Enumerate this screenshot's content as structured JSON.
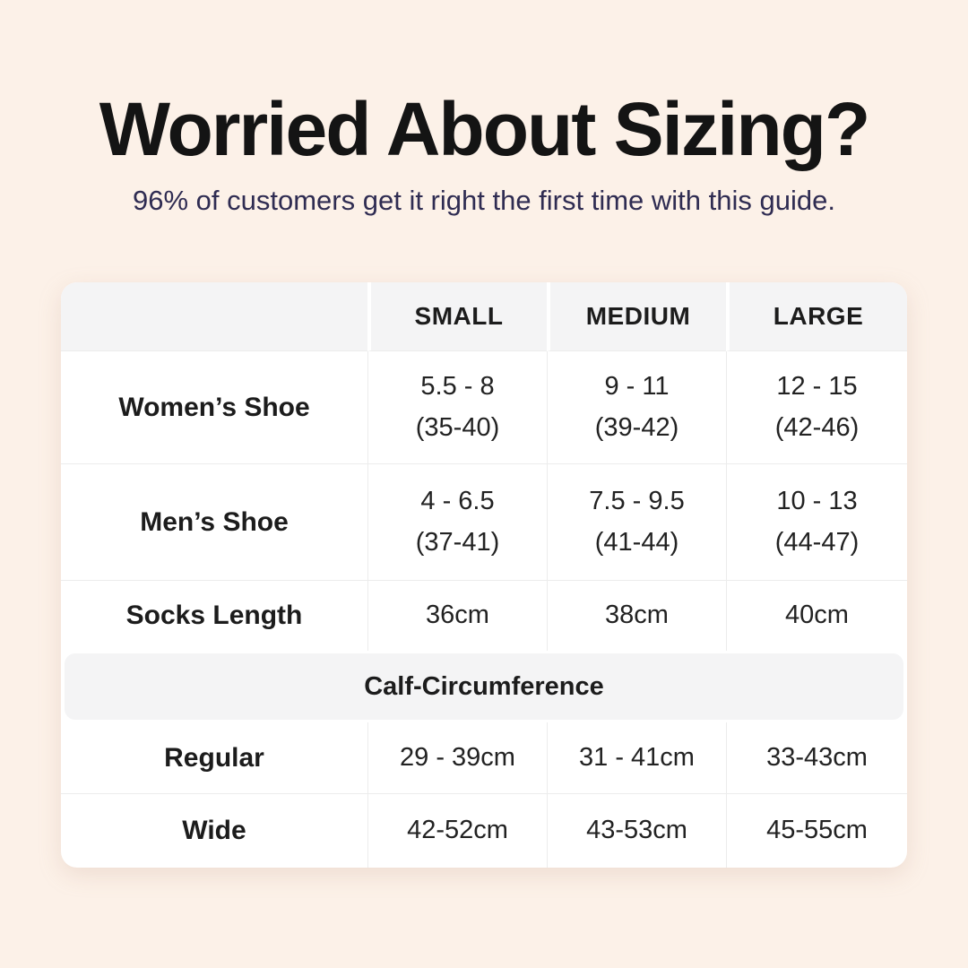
{
  "header": {
    "title": "Worried About Sizing?",
    "subtitle": "96% of customers get it right the first time with this guide."
  },
  "colors": {
    "page_background": "#fcf1e8",
    "card_background": "#ffffff",
    "header_band_gray": "#f4f4f5",
    "divider_gray": "#ececec",
    "title_text": "#141414",
    "subtitle_text": "#2f2c52",
    "table_text": "#222222"
  },
  "chart_data": {
    "type": "table",
    "title": "Worried About Sizing?",
    "subtitle": "96% of customers get it right the first time with this guide.",
    "columns": [
      "SMALL",
      "MEDIUM",
      "LARGE"
    ],
    "rows": [
      {
        "label": "Women’s Shoe",
        "values": [
          [
            "5.5 - 8",
            "(35-40)"
          ],
          [
            "9 - 11",
            "(39-42)"
          ],
          [
            "12 - 15",
            "(42-46)"
          ]
        ]
      },
      {
        "label": "Men’s Shoe",
        "values": [
          [
            "4 - 6.5",
            "(37-41)"
          ],
          [
            "7.5 - 9.5",
            "(41-44)"
          ],
          [
            "10 - 13",
            "(44-47)"
          ]
        ]
      },
      {
        "label": "Socks Length",
        "values": [
          [
            "36cm"
          ],
          [
            "38cm"
          ],
          [
            "40cm"
          ]
        ]
      }
    ],
    "section_header": "Calf-Circumference",
    "section_rows": [
      {
        "label": "Regular",
        "values": [
          [
            "29 - 39cm"
          ],
          [
            "31 - 41cm"
          ],
          [
            "33-43cm"
          ]
        ]
      },
      {
        "label": "Wide",
        "values": [
          [
            "42-52cm"
          ],
          [
            "43-53cm"
          ],
          [
            "45-55cm"
          ]
        ]
      }
    ]
  }
}
